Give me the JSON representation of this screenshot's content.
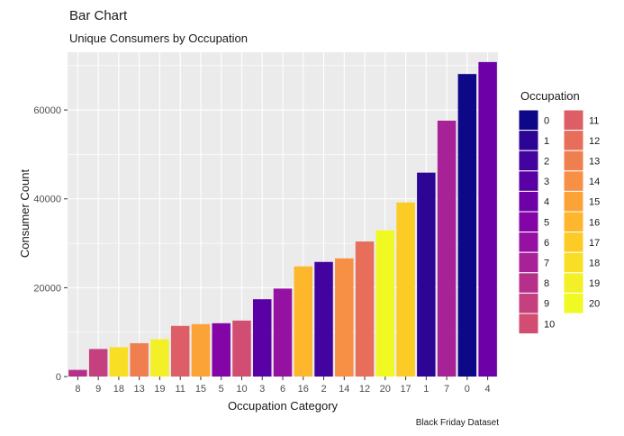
{
  "chart_data": {
    "type": "bar",
    "title": "Bar Chart",
    "subtitle": "Unique Consumers by Occupation",
    "xlabel": "Occupation Category",
    "ylabel": "Consumer Count",
    "caption": "Black Friday Dataset",
    "ylim": [
      0,
      73000
    ],
    "yticks": [
      0,
      20000,
      40000,
      60000
    ],
    "ytick_labels": [
      "0",
      "20000",
      "40000",
      "60000"
    ],
    "grid": true,
    "legend_position": "right",
    "legend_title": "Occupation",
    "categories": [
      "8",
      "9",
      "18",
      "13",
      "19",
      "11",
      "15",
      "5",
      "10",
      "3",
      "6",
      "16",
      "2",
      "14",
      "12",
      "20",
      "17",
      "1",
      "7",
      "0",
      "4"
    ],
    "values": [
      1500,
      6200,
      6600,
      7500,
      8400,
      11400,
      11800,
      12000,
      12600,
      17400,
      19800,
      24800,
      25800,
      26600,
      30400,
      32900,
      39200,
      45900,
      57600,
      68100,
      70800
    ],
    "legend_items": [
      "0",
      "1",
      "2",
      "3",
      "4",
      "5",
      "6",
      "7",
      "8",
      "9",
      "10",
      "11",
      "12",
      "13",
      "14",
      "15",
      "16",
      "17",
      "18",
      "19",
      "20"
    ],
    "colors": {
      "0": "#0d0887",
      "1": "#2c0594",
      "2": "#43039e",
      "3": "#5901a5",
      "4": "#6e00a8",
      "5": "#8305a7",
      "6": "#9511a1",
      "7": "#a72197",
      "8": "#b6308b",
      "9": "#c5407e",
      "10": "#d14e72",
      "11": "#dd5e66",
      "12": "#e76e5b",
      "13": "#f07f4f",
      "14": "#f79044",
      "15": "#fca338",
      "16": "#feb72d",
      "17": "#fccb26",
      "18": "#f8df25",
      "19": "#f3f027",
      "20": "#f0f921"
    },
    "panel_background": "#ebebeb",
    "grid_color": "#ffffff"
  }
}
